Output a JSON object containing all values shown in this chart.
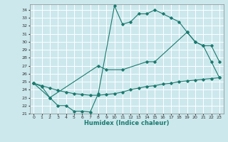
{
  "xlabel": "Humidex (Indice chaleur)",
  "bg_color": "#cce8ed",
  "grid_color": "#ffffff",
  "line_color": "#1a7a6e",
  "xlim": [
    -0.5,
    23.5
  ],
  "ylim": [
    21,
    34.7
  ],
  "yticks": [
    21,
    22,
    23,
    24,
    25,
    26,
    27,
    28,
    29,
    30,
    31,
    32,
    33,
    34
  ],
  "xticks": [
    0,
    1,
    2,
    3,
    4,
    5,
    6,
    7,
    8,
    9,
    10,
    11,
    12,
    13,
    14,
    15,
    16,
    17,
    18,
    19,
    20,
    21,
    22,
    23
  ],
  "line1_x": [
    0,
    1,
    2,
    3,
    4,
    5,
    6,
    7,
    8,
    10,
    11,
    12,
    13,
    14,
    15,
    16,
    17,
    18,
    19,
    20,
    21,
    22,
    23
  ],
  "line1_y": [
    24.8,
    24.4,
    23.0,
    22.0,
    22.0,
    21.3,
    21.3,
    21.2,
    23.5,
    34.5,
    32.2,
    32.5,
    33.5,
    33.5,
    34.0,
    33.5,
    33.0,
    32.5,
    31.2,
    30.0,
    29.5,
    27.5,
    25.5
  ],
  "line2_x": [
    0,
    2,
    8,
    9,
    11,
    14,
    15,
    19,
    20,
    21,
    22,
    23
  ],
  "line2_y": [
    24.8,
    23.0,
    27.0,
    26.5,
    26.5,
    27.5,
    27.5,
    31.2,
    30.0,
    29.5,
    29.5,
    27.5
  ],
  "line3_x": [
    0,
    1,
    2,
    3,
    4,
    5,
    6,
    7,
    8,
    9,
    10,
    11,
    12,
    13,
    14,
    15,
    16,
    17,
    18,
    19,
    20,
    21,
    22,
    23
  ],
  "line3_y": [
    24.8,
    24.5,
    24.2,
    23.9,
    23.7,
    23.5,
    23.4,
    23.3,
    23.3,
    23.4,
    23.5,
    23.7,
    24.0,
    24.2,
    24.4,
    24.5,
    24.7,
    24.8,
    25.0,
    25.1,
    25.2,
    25.3,
    25.4,
    25.5
  ]
}
